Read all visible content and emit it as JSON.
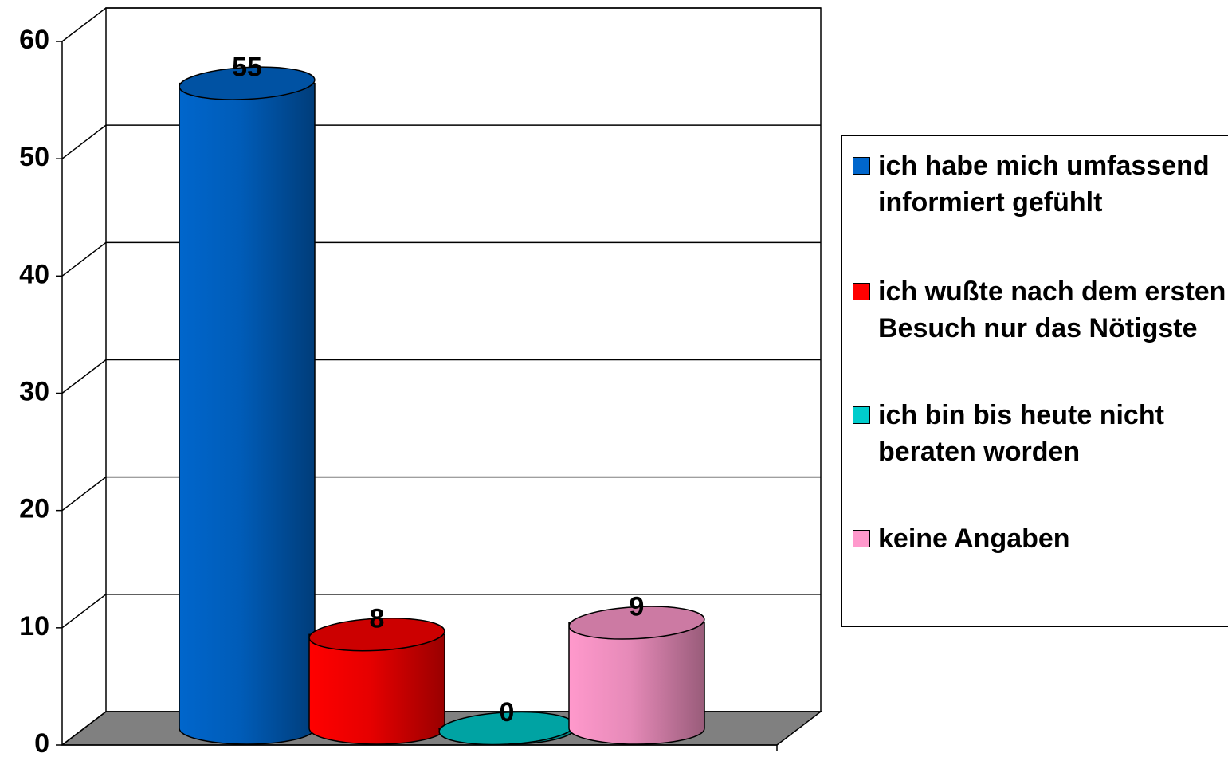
{
  "chart_data": {
    "type": "bar",
    "categories": [
      null
    ],
    "series": [
      {
        "name": "ich habe mich umfassend informiert gefühlt",
        "color": "#0066cc",
        "values": [
          55
        ]
      },
      {
        "name": "ich wußte nach dem ersten Besuch nur das Nötigste",
        "color": "#ff0000",
        "values": [
          8
        ]
      },
      {
        "name": "ich bin bis heute nicht beraten worden",
        "color": "#00cccc",
        "values": [
          0
        ]
      },
      {
        "name": "keine Angaben",
        "color": "#ff99cc",
        "values": [
          9
        ]
      }
    ],
    "ylim": [
      0,
      60
    ],
    "yticks": [
      0,
      10,
      20,
      30,
      40,
      50,
      60
    ],
    "grid": true,
    "legend": "right"
  }
}
